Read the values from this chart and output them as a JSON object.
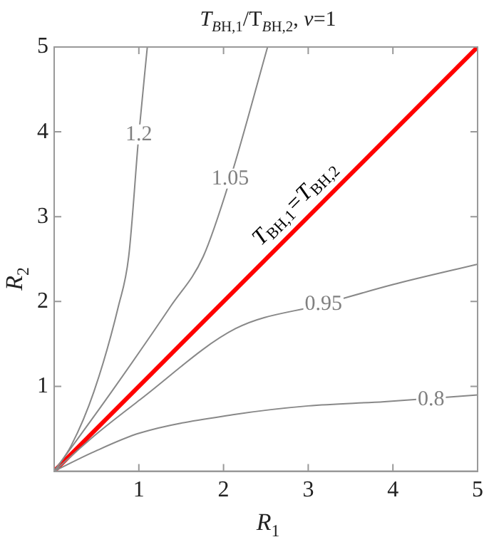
{
  "chart_data": {
    "type": "line",
    "title": "T$_{BH,1}$/T$_{BH,2}$, ν=1",
    "xlabel": "R$_{1}$",
    "ylabel": "R$_{2}$",
    "xlim": [
      0,
      5
    ],
    "ylim": [
      0,
      5
    ],
    "xticks": [
      1,
      2,
      3,
      4,
      5
    ],
    "yticks": [
      1,
      2,
      3,
      4,
      5
    ],
    "grid": false,
    "legend": false,
    "marker": "none",
    "line_style": "solid",
    "series": [
      {
        "color": "#888888",
        "x": [
          0,
          0.2,
          0.47,
          0.76,
          0.88,
          1.0,
          1.1
        ],
        "values": [
          0,
          0.3,
          0.94,
          1.95,
          2.53,
          3.97,
          5
        ]
      },
      {
        "color": "#888888",
        "x": [
          0,
          0.68,
          1.38,
          1.76,
          2.08,
          2.52
        ],
        "values": [
          0,
          0.94,
          1.95,
          2.53,
          3.45,
          5
        ]
      },
      {
        "color": "#888888",
        "x": [
          0,
          0.5,
          1.01,
          2.14,
          3.18,
          4,
          5
        ],
        "values": [
          0,
          0.44,
          0.84,
          1.68,
          1.97,
          2.2,
          2.44
        ]
      },
      {
        "color": "#888888",
        "x": [
          0,
          0.45,
          1.01,
          2.14,
          3,
          3.9,
          5
        ],
        "values": [
          0,
          0.22,
          0.45,
          0.67,
          0.77,
          0.82,
          0.9
        ]
      },
      {
        "name": "T$_{BH,1}$=T$_{BH,2}$",
        "color": "#ff0000",
        "x": [
          0,
          5
        ],
        "values": [
          0,
          5
        ]
      }
    ],
    "annotations": [
      {
        "text": "1.2",
        "x": 1.0,
        "y": 3.97
      },
      {
        "text": "1.05",
        "x": 2.08,
        "y": 3.45
      },
      {
        "text": "0.95",
        "x": 3.18,
        "y": 1.97
      },
      {
        "text": "0.8",
        "x": 4.45,
        "y": 0.84
      }
    ]
  }
}
